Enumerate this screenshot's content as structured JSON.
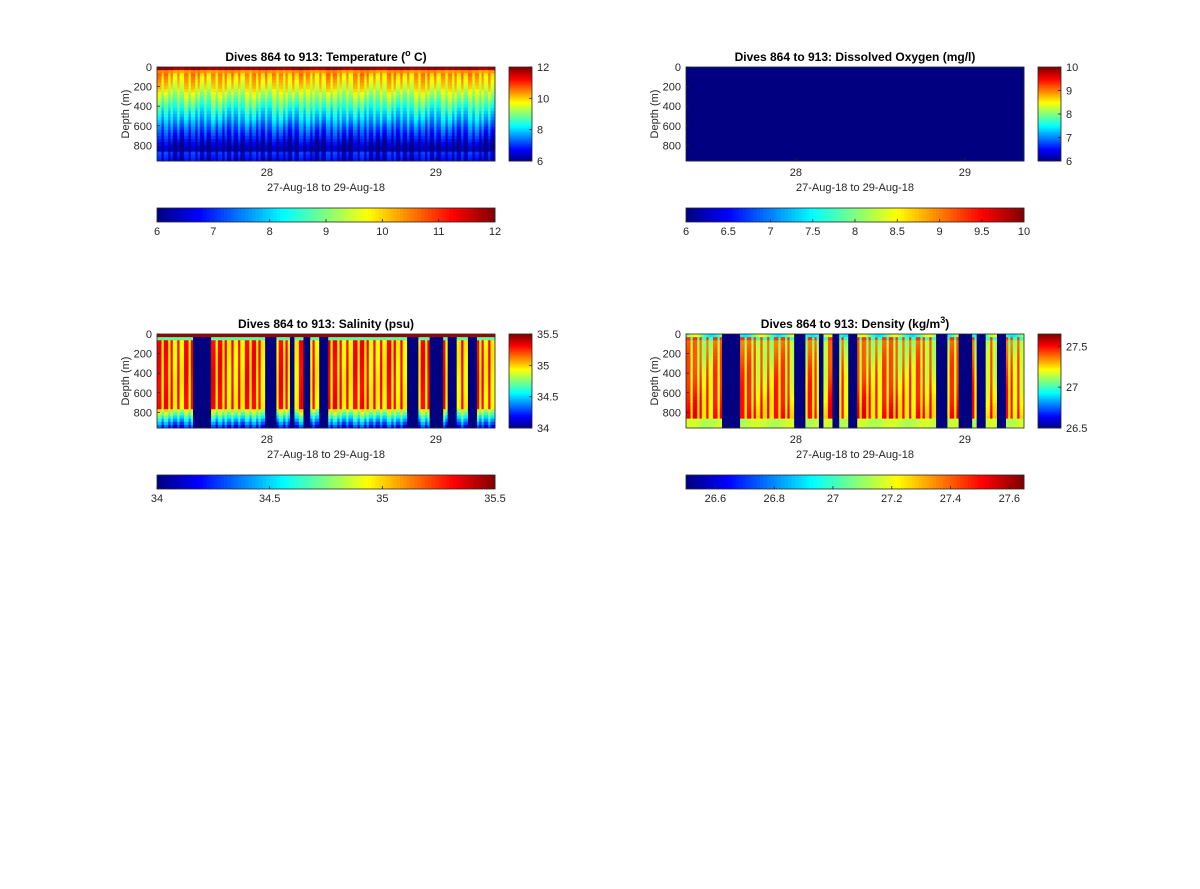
{
  "chart_data": [
    {
      "type": "heatmap",
      "title": "Dives 864 to 913: Temperature (",
      "title_sup": "o",
      "title_tail": " C)",
      "xlabel": "27-Aug-18 to 29-Aug-18",
      "ylabel": "Depth (m)",
      "x_ticks": [
        "28",
        "29"
      ],
      "x_tick_values": [
        28,
        29
      ],
      "xlim": [
        27.35,
        29.35
      ],
      "y_ticks": [
        0,
        200,
        400,
        600,
        800
      ],
      "ylim": [
        0,
        960
      ],
      "y_reversed": true,
      "clim": [
        6,
        12
      ],
      "side_colorbar_ticks": [
        "6",
        "8",
        "10",
        "12"
      ],
      "bottom_colorbar_ticks": [
        "6",
        "7",
        "8",
        "9",
        "10",
        "11",
        "12"
      ],
      "colormap": "jet",
      "field": "temperature",
      "n_dives": 50,
      "gaps": []
    },
    {
      "type": "heatmap",
      "title": "Dives 864 to 913: Dissolved Oxygen (mg/l)",
      "title_sup": "",
      "title_tail": "",
      "xlabel": "27-Aug-18 to 29-Aug-18",
      "ylabel": "Depth (m)",
      "x_ticks": [
        "28",
        "29"
      ],
      "x_tick_values": [
        28,
        29
      ],
      "xlim": [
        27.35,
        29.35
      ],
      "y_ticks": [
        0,
        200,
        400,
        600,
        800
      ],
      "ylim": [
        0,
        960
      ],
      "y_reversed": true,
      "clim": [
        6,
        10
      ],
      "side_colorbar_ticks": [
        "6",
        "7",
        "8",
        "9",
        "10"
      ],
      "bottom_colorbar_ticks": [
        "6",
        "6.5",
        "7",
        "7.5",
        "8",
        "8.5",
        "9",
        "9.5",
        "10"
      ],
      "colormap": "jet",
      "field": "oxygen",
      "n_dives": 50,
      "gaps": []
    },
    {
      "type": "heatmap",
      "title": "Dives 864 to 913: Salinity (psu)",
      "title_sup": "",
      "title_tail": "",
      "xlabel": "27-Aug-18 to 29-Aug-18",
      "ylabel": "Depth (m)",
      "x_ticks": [
        "28",
        "29"
      ],
      "x_tick_values": [
        28,
        29
      ],
      "xlim": [
        27.35,
        29.35
      ],
      "y_ticks": [
        0,
        200,
        400,
        600,
        800
      ],
      "ylim": [
        0,
        960
      ],
      "y_reversed": true,
      "clim": [
        34,
        35.5
      ],
      "side_colorbar_ticks": [
        "34",
        "34.5",
        "35",
        "35.5"
      ],
      "bottom_colorbar_ticks": [
        "34",
        "34.5",
        "35",
        "35.5"
      ],
      "colormap": "jet",
      "field": "salinity",
      "n_dives": 50,
      "gaps": [
        [
          27.56,
          27.67
        ],
        [
          27.99,
          28.05
        ],
        [
          28.14,
          28.16
        ],
        [
          28.22,
          28.25
        ],
        [
          28.31,
          28.36
        ],
        [
          28.83,
          28.89
        ],
        [
          28.96,
          29.04
        ],
        [
          29.07,
          29.13
        ],
        [
          29.19,
          29.24
        ]
      ]
    },
    {
      "type": "heatmap",
      "title": "Dives 864 to 913: Density (kg/m",
      "title_sup": "3",
      "title_tail": ")",
      "xlabel": "27-Aug-18 to 29-Aug-18",
      "ylabel": "Depth (m)",
      "x_ticks": [
        "28",
        "29"
      ],
      "x_tick_values": [
        28,
        29
      ],
      "xlim": [
        27.35,
        29.35
      ],
      "y_ticks": [
        0,
        200,
        400,
        600,
        800
      ],
      "ylim": [
        0,
        960
      ],
      "y_reversed": true,
      "clim": [
        26.5,
        27.65
      ],
      "side_colorbar_ticks": [
        "26.5",
        "27",
        "27.5"
      ],
      "side_colorbar_values": [
        26.5,
        27,
        27.5
      ],
      "bottom_colorbar_ticks": [
        "26.6",
        "26.8",
        "27",
        "27.2",
        "27.4",
        "27.6"
      ],
      "bottom_colorbar_values": [
        26.6,
        26.8,
        27,
        27.2,
        27.4,
        27.6
      ],
      "colormap": "jet",
      "field": "density",
      "n_dives": 50,
      "gaps": [
        [
          27.56,
          27.67
        ],
        [
          27.99,
          28.05
        ],
        [
          28.14,
          28.16
        ],
        [
          28.22,
          28.25
        ],
        [
          28.31,
          28.36
        ],
        [
          28.83,
          28.89
        ],
        [
          28.96,
          29.04
        ],
        [
          29.07,
          29.13
        ],
        [
          29.19,
          29.24
        ]
      ]
    }
  ]
}
